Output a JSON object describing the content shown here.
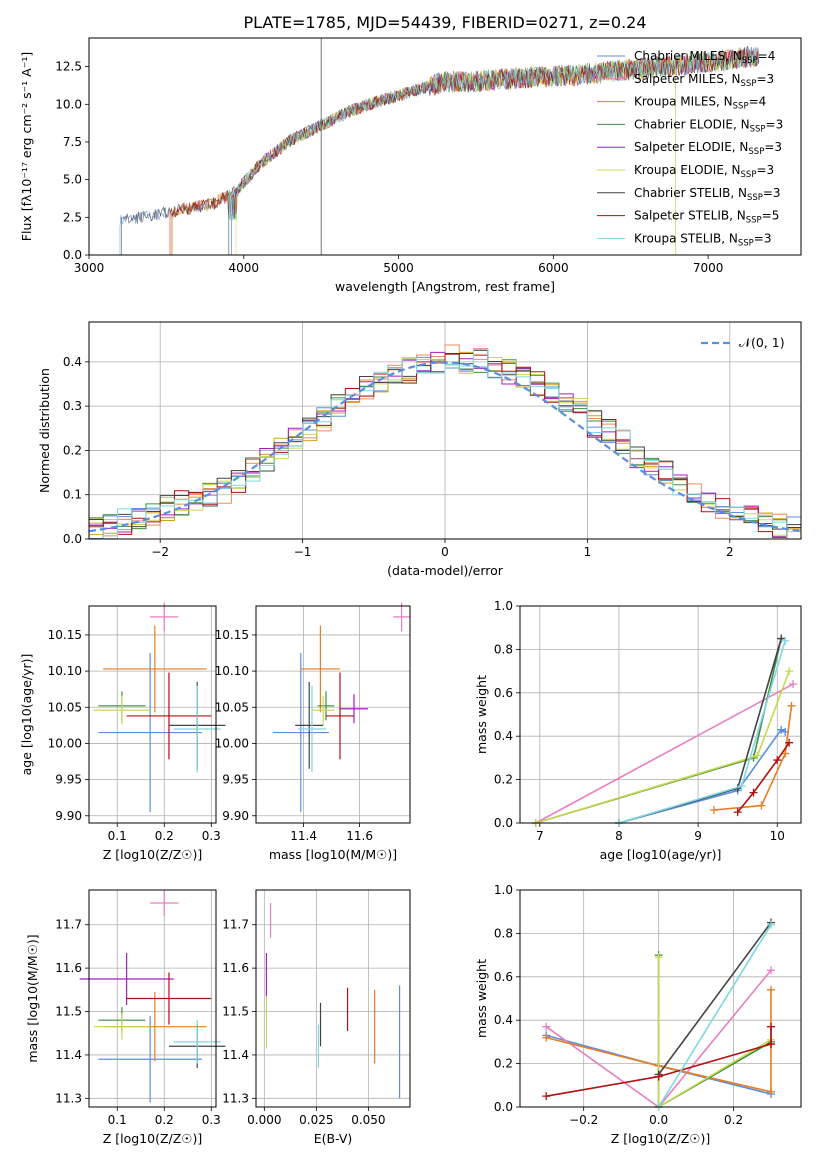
{
  "figure": {
    "title": "PLATE=1785, MJD=54439, FIBERID=0271, z=0.24"
  },
  "colors": {
    "series": [
      "#5b8ee0",
      "#f08a5d",
      "#d4a017",
      "#3e8e41",
      "#a020c0",
      "#c8d850",
      "#444444",
      "#b01010",
      "#7fd8e0"
    ],
    "pink": "#e87fbf",
    "orange": "#e67e22",
    "grid": "#b0b0b0",
    "normal_fit": "#5b8ee0"
  },
  "chart_data": [
    {
      "id": "spectrum",
      "type": "line",
      "title": "PLATE=1785, MJD=54439, FIBERID=0271, z=0.24",
      "xlabel": "wavelength [Angstrom, rest frame]",
      "ylabel": "Flux [fλ10⁻¹⁷ erg cm⁻² s⁻¹ A⁻¹]",
      "xlim": [
        3000,
        7600
      ],
      "ylim": [
        0,
        14.4
      ],
      "xticks": [
        "3000",
        "4000",
        "5000",
        "6000",
        "7000"
      ],
      "yticks": [
        "0.0",
        "2.5",
        "5.0",
        "7.5",
        "10.0",
        "12.5"
      ],
      "grid": false,
      "legend_placement": "right",
      "legend": [
        {
          "label": "Chabrier MILES, N",
          "sub": "SSP",
          "tail": "=4",
          "color": "#5b8ee0"
        },
        {
          "label": "Salpeter MILES, N",
          "sub": "SSP",
          "tail": "=3",
          "color": "#e87fbf"
        },
        {
          "label": "Kroupa MILES, N",
          "sub": "SSP",
          "tail": "=4",
          "color": "#d4881a"
        },
        {
          "label": "Chabrier ELODIE, N",
          "sub": "SSP",
          "tail": "=3",
          "color": "#3e8e41"
        },
        {
          "label": "Salpeter ELODIE, N",
          "sub": "SSP",
          "tail": "=3",
          "color": "#a020c0"
        },
        {
          "label": "Kroupa ELODIE, N",
          "sub": "SSP",
          "tail": "=3",
          "color": "#c8d850"
        },
        {
          "label": "Chabrier STELIB, N",
          "sub": "SSP",
          "tail": "=3",
          "color": "#444444"
        },
        {
          "label": "Salpeter STELIB, N",
          "sub": "SSP",
          "tail": "=5",
          "color": "#b01010"
        },
        {
          "label": "Kroupa STELIB, N",
          "sub": "SSP",
          "tail": "=3",
          "color": "#7fd8e0"
        }
      ],
      "series": [
        {
          "x": [
            3200,
            3400,
            3600,
            3800,
            3950,
            4100,
            4300,
            4500,
            4700,
            4900,
            5100,
            5300,
            5500,
            5700,
            5900,
            6100,
            6300,
            6500,
            6700,
            6900,
            7100,
            7300
          ],
          "y": [
            2.3,
            2.6,
            3.0,
            3.4,
            4.2,
            6.0,
            7.6,
            8.6,
            9.6,
            10.3,
            10.9,
            11.5,
            11.5,
            11.7,
            11.8,
            11.9,
            12.1,
            12.3,
            12.5,
            12.7,
            12.9,
            13.2
          ]
        }
      ]
    },
    {
      "id": "residuals",
      "type": "bar",
      "xlabel": "(data-model)/error",
      "ylabel": "Normed distribution",
      "xlim": [
        -2.5,
        2.5
      ],
      "ylim": [
        0,
        0.49
      ],
      "xticks": [
        "−2",
        "−1",
        "0",
        "1",
        "2"
      ],
      "yticks": [
        "0.0",
        "0.1",
        "0.2",
        "0.3",
        "0.4"
      ],
      "grid": true,
      "legend_placement": "top-right",
      "legend": [
        {
          "label": "𝒩(0, 1)",
          "color": "#5b8ee0"
        }
      ],
      "bin_edges_from": -2.5,
      "bin_width": 0.1,
      "values": [
        0.03,
        0.03,
        0.04,
        0.05,
        0.05,
        0.07,
        0.08,
        0.09,
        0.1,
        0.11,
        0.13,
        0.16,
        0.18,
        0.2,
        0.22,
        0.25,
        0.27,
        0.3,
        0.32,
        0.34,
        0.36,
        0.37,
        0.38,
        0.4,
        0.4,
        0.41,
        0.4,
        0.4,
        0.39,
        0.38,
        0.37,
        0.35,
        0.33,
        0.31,
        0.29,
        0.26,
        0.24,
        0.22,
        0.19,
        0.17,
        0.15,
        0.12,
        0.1,
        0.09,
        0.07,
        0.06,
        0.05,
        0.04,
        0.03,
        0.02
      ]
    },
    {
      "id": "age-vs-z",
      "type": "scatter",
      "xlabel": "Z [log10(Z/Z☉)]",
      "ylabel": "age  [log10(age/yr)]",
      "xlim": [
        0.04,
        0.31
      ],
      "ylim": [
        9.89,
        10.19
      ],
      "xticks": [
        "0.1",
        "0.2",
        "0.3"
      ],
      "yticks": [
        "9.90",
        "9.95",
        "10.00",
        "10.05",
        "10.10",
        "10.15"
      ],
      "grid": true,
      "points": [
        {
          "x": 0.17,
          "y": 10.015,
          "xerr": 0.11,
          "yerr": 0.11,
          "color": "#5b8ee0"
        },
        {
          "x": 0.2,
          "y": 10.175,
          "xerr": 0.03,
          "yerr": 0.02,
          "color": "#e87fbf"
        },
        {
          "x": 0.18,
          "y": 10.103,
          "xerr": 0.11,
          "yerr": 0.06,
          "color": "#e67e22"
        },
        {
          "x": 0.11,
          "y": 10.052,
          "xerr": 0.05,
          "yerr": 0.02,
          "color": "#3e8e41"
        },
        {
          "x": 0.11,
          "y": 10.046,
          "xerr": 0.06,
          "yerr": 0.02,
          "color": "#c8d850"
        },
        {
          "x": 0.21,
          "y": 10.038,
          "xerr": 0.09,
          "yerr": 0.06,
          "color": "#b01010"
        },
        {
          "x": 0.27,
          "y": 10.025,
          "xerr": 0.06,
          "yerr": 0.06,
          "color": "#444444"
        },
        {
          "x": 0.27,
          "y": 10.02,
          "xerr": 0.05,
          "yerr": 0.06,
          "color": "#7fd8e0"
        }
      ]
    },
    {
      "id": "age-vs-mass",
      "type": "scatter",
      "xlabel": "mass [log10(M/M☉)]",
      "ylabel": "",
      "xlim": [
        11.23,
        11.78
      ],
      "ylim": [
        9.89,
        10.19
      ],
      "xticks": [
        "11.4",
        "11.6"
      ],
      "yticks": [
        "9.90",
        "9.95",
        "10.00",
        "10.05",
        "10.10",
        "10.15"
      ],
      "grid": true,
      "points": [
        {
          "x": 11.39,
          "y": 10.015,
          "xerr": 0.1,
          "yerr": 0.11,
          "color": "#5b8ee0"
        },
        {
          "x": 11.75,
          "y": 10.175,
          "xerr": 0.03,
          "yerr": 0.02,
          "color": "#e87fbf"
        },
        {
          "x": 11.46,
          "y": 10.103,
          "xerr": 0.07,
          "yerr": 0.06,
          "color": "#e67e22"
        },
        {
          "x": 11.48,
          "y": 10.052,
          "xerr": 0.03,
          "yerr": 0.02,
          "color": "#3e8e41"
        },
        {
          "x": 11.58,
          "y": 10.048,
          "xerr": 0.05,
          "yerr": 0.02,
          "color": "#a020c0"
        },
        {
          "x": 11.47,
          "y": 10.046,
          "xerr": 0.04,
          "yerr": 0.02,
          "color": "#c8d850"
        },
        {
          "x": 11.53,
          "y": 10.038,
          "xerr": 0.05,
          "yerr": 0.06,
          "color": "#b01010"
        },
        {
          "x": 11.42,
          "y": 10.025,
          "xerr": 0.05,
          "yerr": 0.06,
          "color": "#444444"
        },
        {
          "x": 11.43,
          "y": 10.02,
          "xerr": 0.05,
          "yerr": 0.06,
          "color": "#7fd8e0"
        }
      ]
    },
    {
      "id": "weight-vs-age",
      "type": "line",
      "xlabel": "age  [log10(age/yr)]",
      "ylabel": "mass weight",
      "xlim": [
        6.75,
        10.3
      ],
      "ylim": [
        0,
        1.0
      ],
      "xticks": [
        "7",
        "8",
        "9",
        "10"
      ],
      "yticks": [
        "0.0",
        "0.2",
        "0.4",
        "0.6",
        "0.8",
        "1.0"
      ],
      "grid": true,
      "series": [
        {
          "color": "#5b8ee0",
          "x": [
            8.0,
            9.5,
            10.05,
            10.1
          ],
          "y": [
            0.0,
            0.15,
            0.43,
            0.42
          ]
        },
        {
          "color": "#e87fbf",
          "x": [
            6.95,
            10.2
          ],
          "y": [
            0.0,
            0.64
          ]
        },
        {
          "color": "#e67e22",
          "x": [
            9.2,
            9.8,
            10.1,
            10.18
          ],
          "y": [
            0.06,
            0.08,
            0.32,
            0.54
          ]
        },
        {
          "color": "#3e8e41",
          "x": [
            6.95,
            9.7,
            10.05
          ],
          "y": [
            0.0,
            0.3,
            0.85
          ]
        },
        {
          "color": "#c8d850",
          "x": [
            6.95,
            9.75,
            10.15
          ],
          "y": [
            0.0,
            0.31,
            0.7
          ]
        },
        {
          "color": "#444444",
          "x": [
            8.0,
            9.5,
            10.05
          ],
          "y": [
            0.0,
            0.16,
            0.85
          ]
        },
        {
          "color": "#b01010",
          "x": [
            9.5,
            9.7,
            10.0,
            10.15
          ],
          "y": [
            0.05,
            0.14,
            0.29,
            0.37
          ]
        },
        {
          "color": "#7fd8e0",
          "x": [
            8.0,
            9.55,
            10.1
          ],
          "y": [
            0.0,
            0.17,
            0.84
          ]
        }
      ]
    },
    {
      "id": "mass-vs-z",
      "type": "scatter",
      "xlabel": "Z [log10(Z/Z☉)]",
      "ylabel": "mass [log10(M/M☉)]",
      "xlim": [
        0.04,
        0.31
      ],
      "ylim": [
        11.28,
        11.78
      ],
      "xticks": [
        "0.1",
        "0.2",
        "0.3"
      ],
      "yticks": [
        "11.3",
        "11.4",
        "11.5",
        "11.6",
        "11.7"
      ],
      "grid": true,
      "points": [
        {
          "x": 0.17,
          "y": 11.39,
          "xerr": 0.11,
          "yerr": 0.1,
          "color": "#5b8ee0"
        },
        {
          "x": 0.2,
          "y": 11.75,
          "xerr": 0.03,
          "yerr": 0.03,
          "color": "#e87fbf"
        },
        {
          "x": 0.18,
          "y": 11.465,
          "xerr": 0.11,
          "yerr": 0.08,
          "color": "#e67e22"
        },
        {
          "x": 0.11,
          "y": 11.48,
          "xerr": 0.05,
          "yerr": 0.03,
          "color": "#3e8e41"
        },
        {
          "x": 0.12,
          "y": 11.575,
          "xerr": 0.1,
          "yerr": 0.06,
          "color": "#a020c0"
        },
        {
          "x": 0.11,
          "y": 11.465,
          "xerr": 0.06,
          "yerr": 0.03,
          "color": "#c8d850"
        },
        {
          "x": 0.21,
          "y": 11.53,
          "xerr": 0.09,
          "yerr": 0.06,
          "color": "#b01010"
        },
        {
          "x": 0.27,
          "y": 11.42,
          "xerr": 0.06,
          "yerr": 0.05,
          "color": "#444444"
        },
        {
          "x": 0.27,
          "y": 11.43,
          "xerr": 0.05,
          "yerr": 0.05,
          "color": "#7fd8e0"
        }
      ]
    },
    {
      "id": "mass-vs-ebv",
      "type": "scatter",
      "xlabel": "E(B-V)",
      "ylabel": "",
      "xlim": [
        -0.004,
        0.07
      ],
      "ylim": [
        11.28,
        11.78
      ],
      "xticks": [
        "0.000",
        "0.025",
        "0.050"
      ],
      "yticks": [
        "11.3",
        "11.4",
        "11.5",
        "11.6",
        "11.7"
      ],
      "grid": true,
      "points": [
        {
          "x": 0.065,
          "y": 11.43,
          "xerr": 0,
          "yerr": 0.13,
          "color": "#5b8ee0"
        },
        {
          "x": 0.003,
          "y": 11.71,
          "xerr": 0,
          "yerr": 0.04,
          "color": "#e87fbf"
        },
        {
          "x": 0.053,
          "y": 11.465,
          "xerr": 0,
          "yerr": 0.085,
          "color": "#e67e22"
        },
        {
          "x": 0.001,
          "y": 11.585,
          "xerr": 0,
          "yerr": 0.05,
          "color": "#a020c0"
        },
        {
          "x": 0.001,
          "y": 11.475,
          "xerr": 0,
          "yerr": 0.06,
          "color": "#c8d850"
        },
        {
          "x": 0.04,
          "y": 11.505,
          "xerr": 0,
          "yerr": 0.05,
          "color": "#b01010"
        },
        {
          "x": 0.027,
          "y": 11.47,
          "xerr": 0,
          "yerr": 0.05,
          "color": "#444444"
        },
        {
          "x": 0.026,
          "y": 11.42,
          "xerr": 0,
          "yerr": 0.05,
          "color": "#7fd8e0"
        }
      ]
    },
    {
      "id": "weight-vs-z",
      "type": "line",
      "xlabel": "Z [log10(Z/Z☉)]",
      "ylabel": "mass weight",
      "xlim": [
        -0.37,
        0.38
      ],
      "ylim": [
        0,
        1.0
      ],
      "xticks": [
        "−0.2",
        "0.0",
        "0.2"
      ],
      "yticks": [
        "0.0",
        "0.2",
        "0.4",
        "0.6",
        "0.8",
        "1.0"
      ],
      "grid": true,
      "series": [
        {
          "color": "#5b8ee0",
          "x": [
            -0.3,
            0.0,
            0.3
          ],
          "y": [
            0.33,
            0.19,
            0.06
          ]
        },
        {
          "color": "#e87fbf",
          "x": [
            -0.3,
            0.0,
            0.3
          ],
          "y": [
            0.37,
            0.0,
            0.63
          ]
        },
        {
          "color": "#e67e22",
          "x": [
            -0.3,
            0.0,
            0.3,
            0.3,
            0.3
          ],
          "y": [
            0.32,
            0.19,
            0.07,
            0.29,
            0.54
          ]
        },
        {
          "color": "#3e8e41",
          "x": [
            0.0,
            0.0,
            0.3
          ],
          "y": [
            0.7,
            0.0,
            0.3
          ]
        },
        {
          "color": "#c8d850",
          "x": [
            0.0,
            0.0,
            0.3
          ],
          "y": [
            0.69,
            0.0,
            0.31
          ]
        },
        {
          "color": "#444444",
          "x": [
            0.0,
            0.3
          ],
          "y": [
            0.15,
            0.85
          ]
        },
        {
          "color": "#b01010",
          "x": [
            -0.3,
            0.0,
            0.3,
            0.3
          ],
          "y": [
            0.05,
            0.14,
            0.29,
            0.37
          ]
        },
        {
          "color": "#7fd8e0",
          "x": [
            0.0,
            0.3
          ],
          "y": [
            0.0,
            0.84
          ]
        }
      ]
    }
  ]
}
